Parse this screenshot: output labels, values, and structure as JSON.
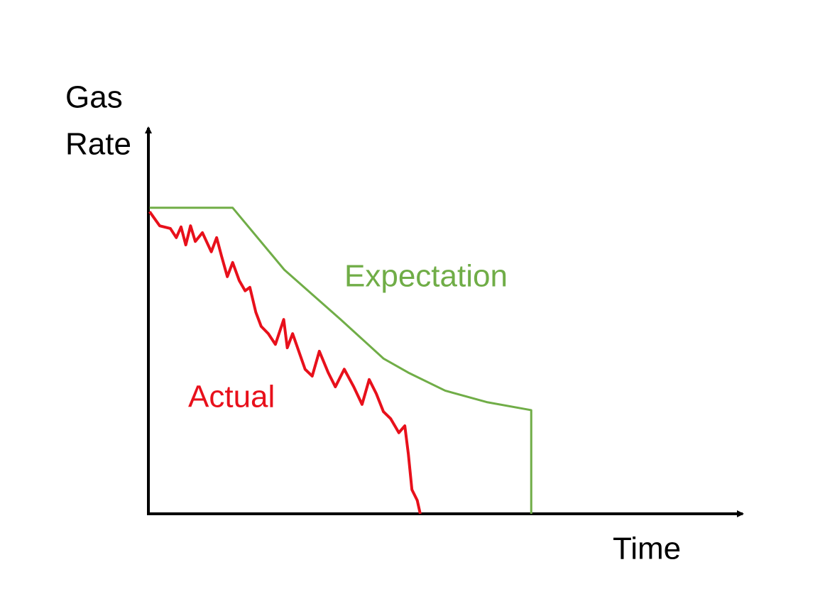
{
  "chart_data": {
    "type": "line",
    "y_label": [
      "Gas",
      "Rate"
    ],
    "x_label": "Time",
    "xlim": [
      0,
      100
    ],
    "ylim": [
      0,
      100
    ],
    "series": [
      {
        "name": "Expectation",
        "color": "#70ad47",
        "x": [
          0.2,
          14.2,
          22.9,
          32.4,
          39.6,
          43.8,
          50,
          57,
          64.5,
          64.5
        ],
        "values": [
          80,
          80,
          63.8,
          50.8,
          40.6,
          36.9,
          32.2,
          29.2,
          27.1,
          0
        ]
      },
      {
        "name": "Actual",
        "color": "#e8101b",
        "x": [
          0.2,
          1.9,
          3.7,
          4.7,
          5.5,
          6.3,
          7.1,
          7.9,
          9.1,
          10.6,
          11.5,
          12.3,
          13.3,
          14.2,
          15.3,
          16.3,
          17.1,
          18.1,
          19.0,
          20.2,
          21.4,
          22.8,
          23.4,
          24.3,
          26.4,
          27.6,
          28.8,
          30.3,
          31.5,
          33.0,
          34.6,
          36.0,
          37.2,
          38.4,
          39.6,
          40.8,
          42.2,
          43.2,
          43.8,
          44.4,
          45.3,
          45.8
        ],
        "values": [
          79.0,
          75.3,
          74.6,
          72.2,
          75.0,
          70.3,
          75.3,
          71.2,
          73.5,
          68.5,
          72.2,
          67.5,
          62.0,
          65.7,
          61.0,
          58.3,
          59.2,
          52.7,
          49.0,
          47.1,
          44.3,
          50.8,
          43.4,
          47.1,
          37.8,
          36.0,
          42.5,
          36.9,
          33.2,
          37.8,
          33.2,
          28.6,
          35.1,
          31.4,
          26.7,
          24.9,
          21.2,
          23.0,
          15.6,
          6.3,
          3.5,
          0
        ]
      }
    ]
  }
}
